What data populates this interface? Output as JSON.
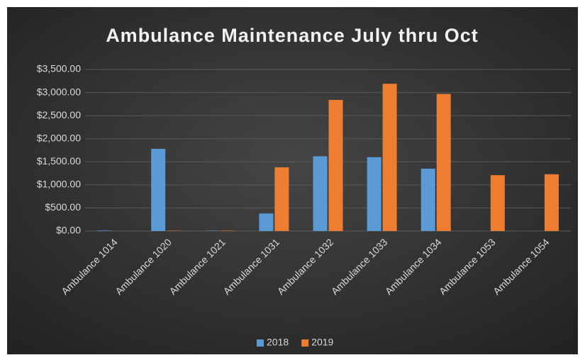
{
  "chart_data": {
    "type": "bar",
    "title": "Ambulance Maintenance July thru Oct",
    "categories": [
      "Ambulance 1014",
      "Ambulance 1020",
      "Ambulance 1021",
      "Ambulance 1031",
      "Ambulance 1032",
      "Ambulance 1033",
      "Ambulance 1034",
      "Ambulance 1053",
      "Ambulance 1054"
    ],
    "series": [
      {
        "name": "2018",
        "color": "#5b9bd5",
        "values": [
          10,
          1780,
          8,
          380,
          1620,
          1600,
          1350,
          0,
          0
        ]
      },
      {
        "name": "2019",
        "color": "#ed7d31",
        "values": [
          0,
          8,
          8,
          1380,
          2840,
          3190,
          2970,
          1210,
          1230
        ]
      }
    ],
    "ylim": [
      0,
      3500
    ],
    "yticks": [
      {
        "value": 0,
        "label": "$0.00"
      },
      {
        "value": 500,
        "label": "$500.00"
      },
      {
        "value": 1000,
        "label": "$1,000.00"
      },
      {
        "value": 1500,
        "label": "$1,500.00"
      },
      {
        "value": 2000,
        "label": "$2,000.00"
      },
      {
        "value": 2500,
        "label": "$2,500.00"
      },
      {
        "value": 3000,
        "label": "$3,000.00"
      },
      {
        "value": 3500,
        "label": "$3,500.00"
      }
    ],
    "grid": true,
    "legend": "bottom"
  }
}
